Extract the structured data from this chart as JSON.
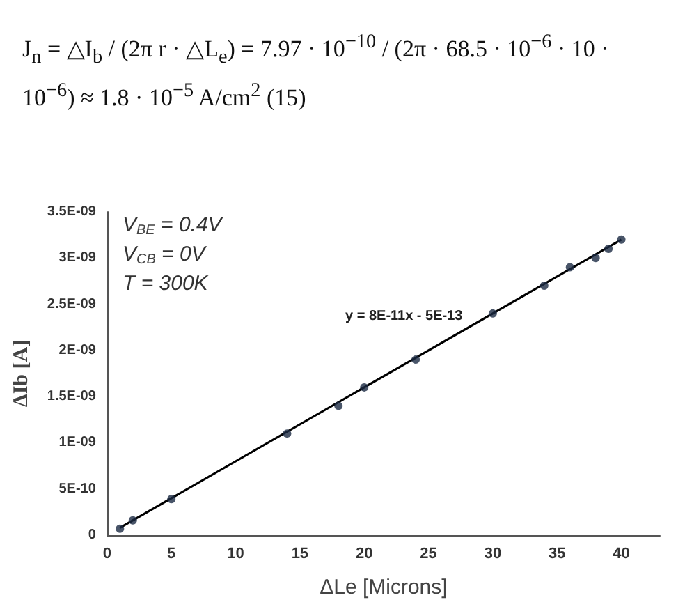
{
  "chart_data": {
    "type": "scatter",
    "xlabel": "ΔLe [Microns]",
    "ylabel": "ΔIb [A]",
    "annotations": [
      "J$_{n}$ = △I$_{b}$ / (2π r · △L$_{e}$) = 7.97 · 10$^{−10}$ / (2π · 68.5 · 10$^{−6}$ · 10 · 10$^{−6}$) ≈ 1.8 · 10$^{−5}$ A/cm$^{2}$   (15)",
      "V$_{BE}$ = 0.4V",
      "V$_{CB}$ = 0V",
      "T = 300K",
      "y = 8E-11x - 5E-13"
    ],
    "series": [
      {
        "color": "#1c2b44",
        "marker": "circle",
        "x": [
          1,
          2,
          5,
          14,
          18,
          20,
          24,
          30,
          34,
          36,
          38,
          39,
          40
        ],
        "values": [
          7e-11,
          1.6e-10,
          3.9e-10,
          1.1e-09,
          1.4e-09,
          1.6e-09,
          1.9e-09,
          2.4e-09,
          2.7e-09,
          2.9e-09,
          3e-09,
          3.1e-09,
          3.2e-09
        ]
      },
      {
        "type": "line",
        "color": "#000000",
        "marker": "none",
        "x": [
          1,
          40
        ],
        "values": [
          8e-11,
          3.2e-09
        ]
      }
    ],
    "grid": false,
    "xlim": [
      0,
      43
    ],
    "xticks": [
      0,
      5,
      10,
      15,
      20,
      25,
      30,
      35,
      40
    ],
    "ylim": [
      0,
      3.5e-09
    ],
    "yticks": [
      {
        "value": 0,
        "label": "0"
      },
      {
        "value": 5e-10,
        "label": "5E-10"
      },
      {
        "value": 1e-09,
        "label": "1E-09"
      },
      {
        "value": 1.5e-09,
        "label": "1.5E-09"
      },
      {
        "value": 2e-09,
        "label": "2E-09"
      },
      {
        "value": 2.5e-09,
        "label": "2.5E-09"
      },
      {
        "value": 3e-09,
        "label": "3E-09"
      },
      {
        "value": 3.5e-09,
        "label": "3.5E-09"
      }
    ]
  }
}
